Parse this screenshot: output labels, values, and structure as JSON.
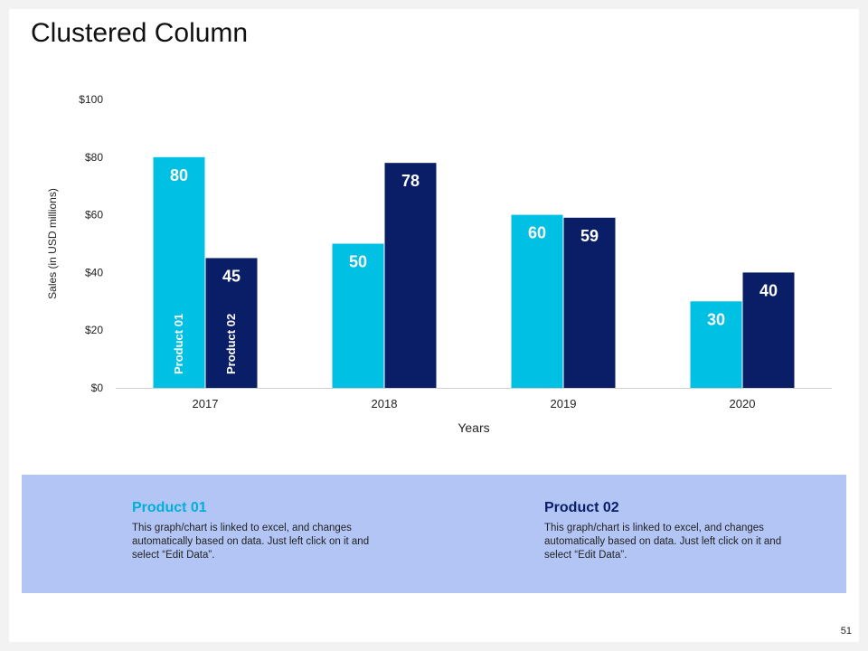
{
  "slide": {
    "title": "Clustered Column",
    "page_number": "51"
  },
  "colors": {
    "product01": "#00c0e4",
    "product02": "#0a1e68",
    "band": "#b3c5f5"
  },
  "chart_data": {
    "type": "bar",
    "title": "Clustered Column",
    "categories": [
      "2017",
      "2018",
      "2019",
      "2020"
    ],
    "series": [
      {
        "name": "Product 01",
        "values": [
          80,
          50,
          60,
          30
        ]
      },
      {
        "name": "Product 02",
        "values": [
          45,
          78,
          59,
          40
        ]
      }
    ],
    "xlabel": "Years",
    "ylabel": "Sales (in USD millions)",
    "ylim": [
      0,
      100
    ],
    "yticks": [
      "$0",
      "$20",
      "$40",
      "$60",
      "$80",
      "$100"
    ],
    "grid": false,
    "legend": "inside first category bars"
  },
  "info": [
    {
      "heading": "Product 01",
      "text": "This graph/chart is linked to excel, and changes automatically based on data. Just left click on it and select “Edit Data”."
    },
    {
      "heading": "Product 02",
      "text": "This graph/chart is linked to excel, and changes automatically based on data. Just left click on it and select “Edit Data”."
    }
  ]
}
